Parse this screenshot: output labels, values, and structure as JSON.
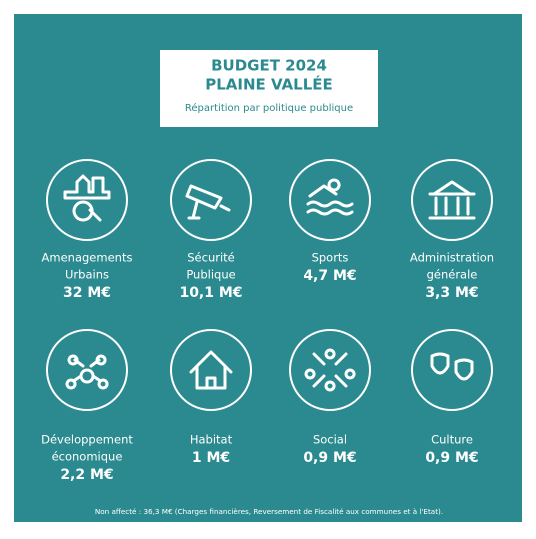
{
  "header": {
    "title": [
      "BUDGET 2024",
      "PLAINE VALLÉE"
    ],
    "subtitle": "Répartition par politique publique"
  },
  "items": [
    {
      "label": [
        "Amenagements",
        "Urbains"
      ],
      "amount": "32 M€"
    },
    {
      "label": [
        "Sécurité",
        "Publique"
      ],
      "amount": "10,1 M€"
    },
    {
      "label": [
        "Sports"
      ],
      "amount": "4,7 M€"
    },
    {
      "label": [
        "Administration",
        "générale"
      ],
      "amount": "3,3 M€"
    },
    {
      "label": [
        "Développement",
        "économique"
      ],
      "amount": "2,2 M€"
    },
    {
      "label": [
        "Habitat"
      ],
      "amount": "1 M€"
    },
    {
      "label": [
        "Social"
      ],
      "amount": "0,9 M€"
    },
    {
      "label": [
        "Culture"
      ],
      "amount": "0,9 M€"
    }
  ],
  "footer": "Non affecté : 36,3 M€ (Charges financières, Reversement de Fiscalité aux communes et à l'Etat)."
}
